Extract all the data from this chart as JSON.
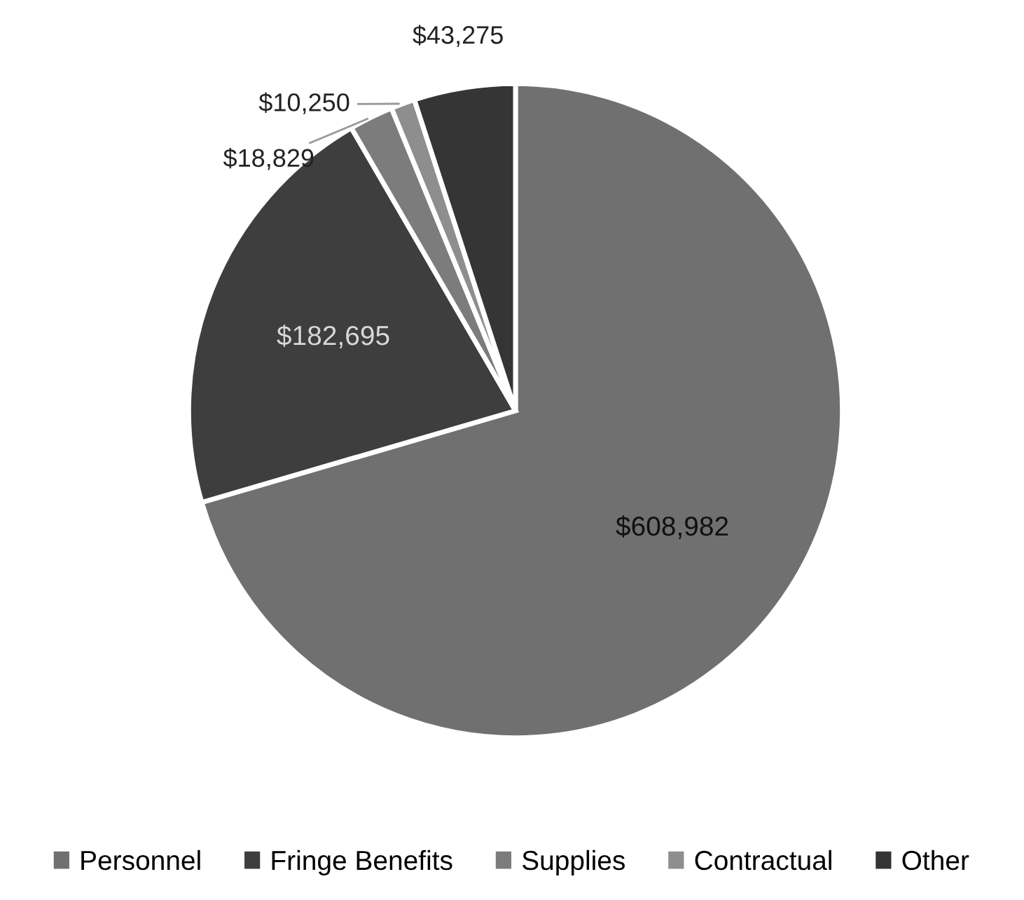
{
  "chart_data": {
    "type": "pie",
    "categories": [
      "Personnel",
      "Fringe Benefits",
      "Supplies",
      "Contractual",
      "Other"
    ],
    "values": [
      608982,
      182695,
      18829,
      10250,
      43275
    ],
    "value_labels": [
      "$608,982",
      "$182,695",
      "$18,829",
      "$10,250",
      "$43,275"
    ],
    "colors": [
      "#707070",
      "#3e3e3e",
      "#7c7c7c",
      "#8e8e8e",
      "#353535"
    ],
    "legend": "bottom"
  }
}
